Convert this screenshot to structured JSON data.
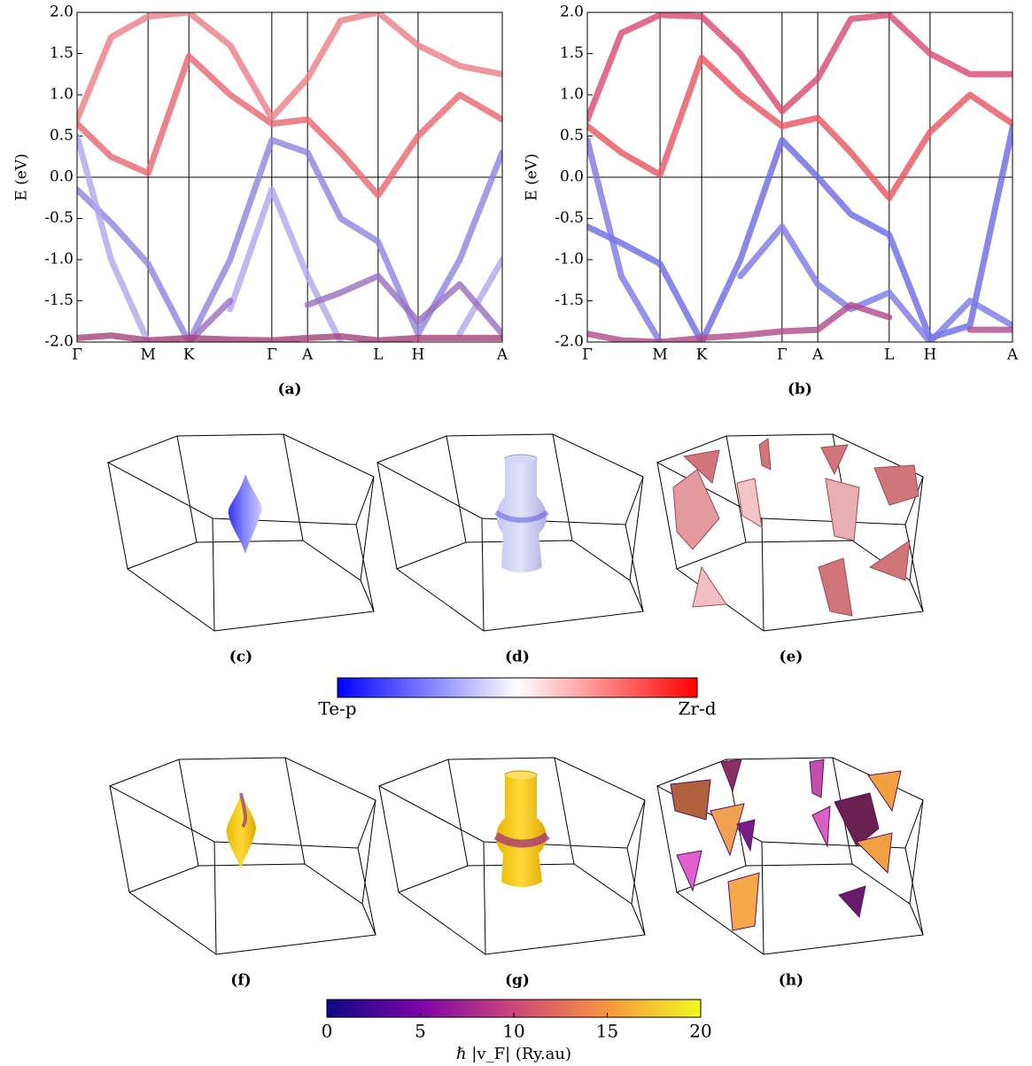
{
  "chart_data": [
    {
      "type": "line",
      "caption": "(a)",
      "ylabel": "E (eV)",
      "xlim": [
        0,
        10
      ],
      "ylim": [
        -2,
        2
      ],
      "xticks": [
        {
          "value": 0,
          "label": "Γ"
        },
        {
          "value": 1.67,
          "label": "M"
        },
        {
          "value": 2.63,
          "label": "K"
        },
        {
          "value": 4.58,
          "label": "Γ"
        },
        {
          "value": 5.42,
          "label": "A"
        },
        {
          "value": 7.08,
          "label": "L"
        },
        {
          "value": 8.02,
          "label": "H"
        },
        {
          "value": 10,
          "label": "A"
        }
      ],
      "yticks": [
        {
          "value": 2,
          "label": "2.0"
        },
        1.5,
        {
          "value": 1,
          "label": "1.0"
        },
        0.5,
        {
          "value": 0,
          "label": "0.0"
        },
        -0.5,
        {
          "value": -1,
          "label": "-1.0"
        },
        -1.5,
        {
          "value": -2,
          "label": "-2.0"
        }
      ],
      "x": [
        0,
        0.8,
        1.67,
        2.63,
        3.6,
        4.58,
        5.42,
        6.2,
        7.08,
        8.02,
        9,
        10
      ],
      "series": [
        {
          "color": "#e9646e",
          "values": [
            0.65,
            0.25,
            0.05,
            1.47,
            1.0,
            0.65,
            0.7,
            0.3,
            -0.22,
            0.5,
            1.0,
            0.7
          ]
        },
        {
          "color": "#ec7d86",
          "values": [
            0.7,
            1.7,
            1.95,
            2.0,
            1.6,
            0.72,
            1.2,
            1.9,
            2.0,
            1.6,
            1.35,
            1.25
          ]
        },
        {
          "color": "#8c84e0",
          "values": [
            -0.15,
            -0.55,
            -1.05,
            -2.0,
            -1.0,
            0.45,
            0.3,
            -0.5,
            -0.78,
            -1.9,
            -1.0,
            0.3
          ]
        },
        {
          "color": "#b0a8ee",
          "values": [
            0.5,
            -1.0,
            -2.0,
            null,
            -1.6,
            -0.15,
            -1.2,
            -2.0,
            null,
            null,
            -1.9,
            -1.0
          ]
        },
        {
          "color": "#9a6fbf",
          "values": [
            null,
            null,
            null,
            -2.0,
            -1.5,
            null,
            -1.55,
            -1.4,
            -1.2,
            -1.75,
            -1.3,
            -1.9
          ]
        },
        {
          "color": "#a4427a",
          "values": [
            -1.95,
            -1.92,
            -1.98,
            -1.95,
            -1.97,
            -1.98,
            -1.95,
            -1.93,
            -1.98,
            -1.95,
            -1.95,
            -1.95
          ]
        }
      ]
    },
    {
      "type": "line",
      "caption": "(b)",
      "ylabel": "E (eV)",
      "xlim": [
        0,
        10
      ],
      "ylim": [
        -2,
        2
      ],
      "xticks": [
        {
          "value": 0,
          "label": "Γ"
        },
        {
          "value": 1.71,
          "label": "M"
        },
        {
          "value": 2.69,
          "label": "K"
        },
        {
          "value": 4.58,
          "label": "Γ"
        },
        {
          "value": 5.42,
          "label": "A"
        },
        {
          "value": 7.1,
          "label": "L"
        },
        {
          "value": 8.06,
          "label": "H"
        },
        {
          "value": 10,
          "label": "A"
        }
      ],
      "yticks": [
        {
          "value": 2,
          "label": "2.0"
        },
        1.5,
        {
          "value": 1,
          "label": "1.0"
        },
        0.5,
        {
          "value": 0,
          "label": "0.0"
        },
        -0.5,
        {
          "value": -1,
          "label": "-1.0"
        },
        -1.5,
        {
          "value": -2,
          "label": "-2.0"
        }
      ],
      "x": [
        0,
        0.8,
        1.71,
        2.69,
        3.6,
        4.58,
        5.42,
        6.2,
        7.1,
        8.06,
        9,
        10
      ],
      "series": [
        {
          "color": "#e8525c",
          "values": [
            0.62,
            0.3,
            0.03,
            1.45,
            1.0,
            0.62,
            0.72,
            0.3,
            -0.25,
            0.55,
            1.0,
            0.65
          ]
        },
        {
          "color": "#d8486e",
          "values": [
            0.7,
            1.75,
            1.97,
            1.95,
            1.5,
            0.8,
            1.2,
            1.92,
            1.97,
            1.5,
            1.25,
            1.25
          ]
        },
        {
          "color": "#6a6ae6",
          "values": [
            -0.6,
            -0.8,
            -1.05,
            -2.0,
            -1.0,
            0.45,
            0.0,
            -0.45,
            -0.7,
            -1.95,
            -1.8,
            0.6
          ]
        },
        {
          "color": "#7b78e6",
          "values": [
            0.45,
            -1.2,
            -2.0,
            null,
            -1.2,
            -0.6,
            -1.3,
            -1.6,
            -1.4,
            -2.0,
            -1.5,
            -1.8
          ]
        },
        {
          "color": "#b04a8a",
          "values": [
            -1.9,
            -1.98,
            -2.0,
            -1.95,
            -1.92,
            -1.87,
            -1.85,
            -1.55,
            -1.7,
            null,
            -1.85,
            -1.85
          ]
        }
      ]
    },
    {
      "type": "colorbar",
      "colors": [
        "#0000ff",
        "#ffffff",
        "#ff0000"
      ],
      "labels": [
        "Te-p",
        "Zr-d"
      ]
    },
    {
      "type": "colorbar",
      "colors": [
        "#0d0887",
        "#7e03a8",
        "#cc4778",
        "#f89540",
        "#f0f921"
      ],
      "xlim": [
        0,
        20
      ],
      "xticks": [
        0,
        5,
        10,
        15,
        20
      ],
      "xlabel": "ℏ |v_F|  (Ry.au)"
    }
  ],
  "figure": {
    "captions": [
      "(c)",
      "(d)",
      "(e)",
      "(f)",
      "(g)",
      "(h)"
    ]
  }
}
